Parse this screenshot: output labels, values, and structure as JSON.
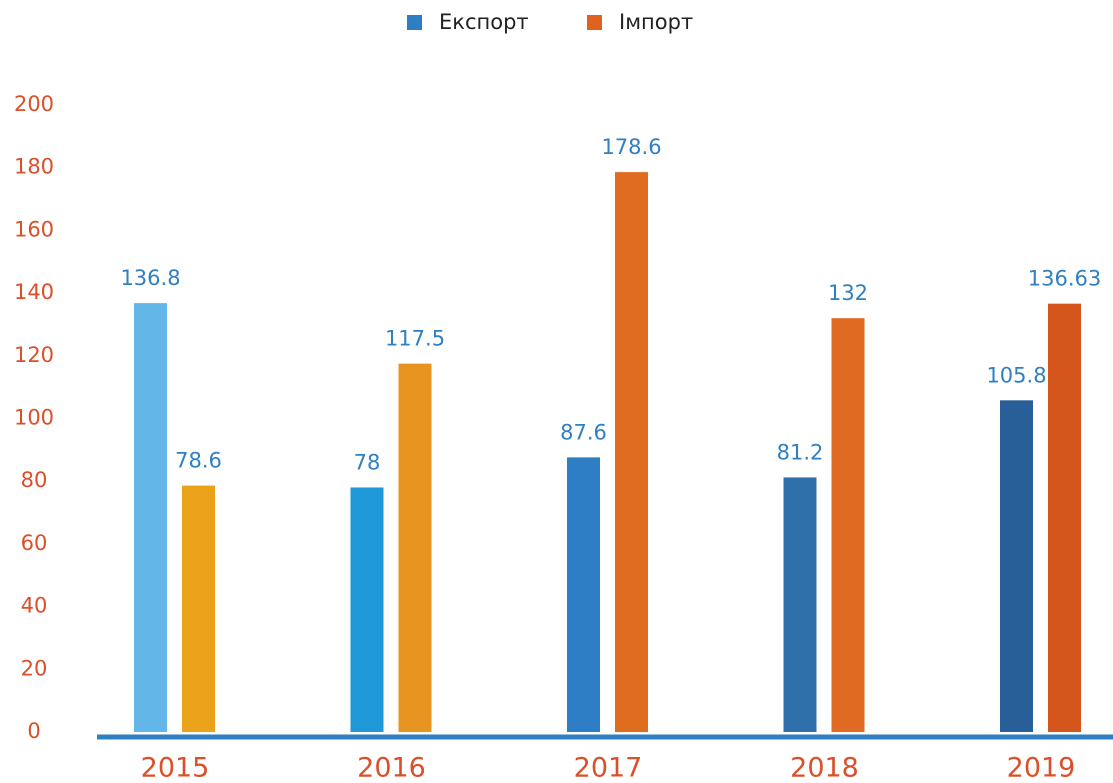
{
  "chart_data": {
    "type": "bar",
    "categories": [
      "2015",
      "2016",
      "2017",
      "2018",
      "2019"
    ],
    "series": [
      {
        "name": "Експорт",
        "color": "#2e7ec5",
        "colors": [
          "#63b7e8",
          "#1e98d6",
          "#2e7ec5",
          "#2f6faa",
          "#295f98"
        ],
        "values": [
          136.8,
          78,
          87.6,
          81.2,
          105.8
        ]
      },
      {
        "name": "Імпорт",
        "color": "#e0621f",
        "colors": [
          "#eaa21a",
          "#e89420",
          "#e06c20",
          "#e06a22",
          "#d4561c"
        ],
        "values": [
          78.6,
          117.5,
          178.6,
          132,
          136.63
        ]
      }
    ],
    "ylim": [
      0,
      200
    ],
    "yticks": [
      0,
      20,
      40,
      60,
      80,
      100,
      120,
      140,
      160,
      180,
      200
    ],
    "legend": "top",
    "grid": false
  }
}
